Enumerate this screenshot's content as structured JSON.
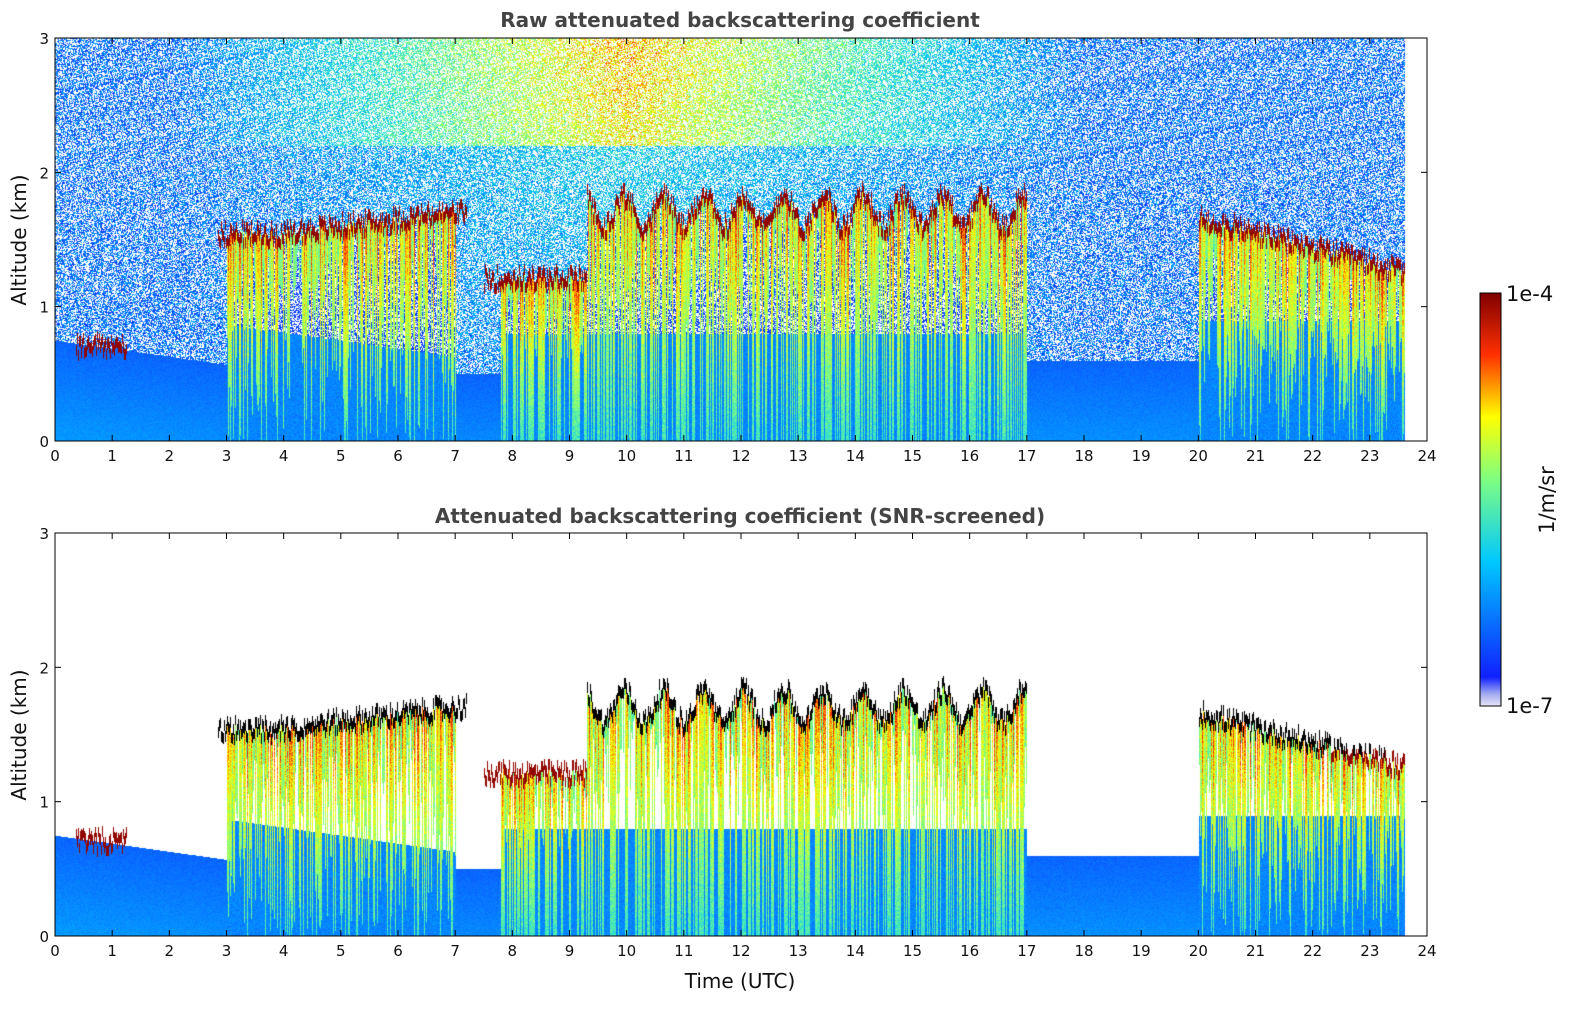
{
  "chart_data": [
    {
      "type": "heatmap",
      "title": "Raw attenuated backscattering coefficient",
      "xlabel": "",
      "ylabel": "Altitude (km)",
      "xlim": [
        0,
        24
      ],
      "ylim": [
        0,
        3
      ],
      "xticks": [
        0,
        1,
        2,
        3,
        4,
        5,
        6,
        7,
        8,
        9,
        10,
        11,
        12,
        13,
        14,
        15,
        16,
        17,
        18,
        19,
        20,
        21,
        22,
        23,
        24
      ],
      "yticks": [
        0,
        1,
        2,
        3
      ],
      "screened": false,
      "features": {
        "cloud_top_segments": [
          {
            "t_start": 0.35,
            "t_end": 1.25,
            "alt": 0.75
          },
          {
            "t_start": 2.85,
            "t_end": 4.2,
            "alt": 1.58
          },
          {
            "t_start": 4.2,
            "t_end": 7.2,
            "alt_start": 1.6,
            "alt_end": 1.75
          },
          {
            "t_start": 7.5,
            "t_end": 9.3,
            "alt": 1.25
          },
          {
            "t_start": 9.3,
            "t_end": 17.0,
            "alt": 1.75
          },
          {
            "t_start": 20.0,
            "t_end": 23.6,
            "alt_start": 1.7,
            "alt_end": 1.3
          }
        ],
        "data_end_time": 23.6
      }
    },
    {
      "type": "heatmap",
      "title": "Attenuated backscattering coefficient (SNR-screened)",
      "xlabel": "Time (UTC)",
      "ylabel": "Altitude (km)",
      "xlim": [
        0,
        24
      ],
      "ylim": [
        0,
        3
      ],
      "xticks": [
        0,
        1,
        2,
        3,
        4,
        5,
        6,
        7,
        8,
        9,
        10,
        11,
        12,
        13,
        14,
        15,
        16,
        17,
        18,
        19,
        20,
        21,
        22,
        23,
        24
      ],
      "yticks": [
        0,
        1,
        2,
        3
      ],
      "screened": true,
      "data_end_time": 23.6
    }
  ],
  "colorbar": {
    "label": "1/m/sr",
    "min_label": "1e-7",
    "max_label": "1e-4",
    "scale": "log",
    "colormap": "jet"
  }
}
